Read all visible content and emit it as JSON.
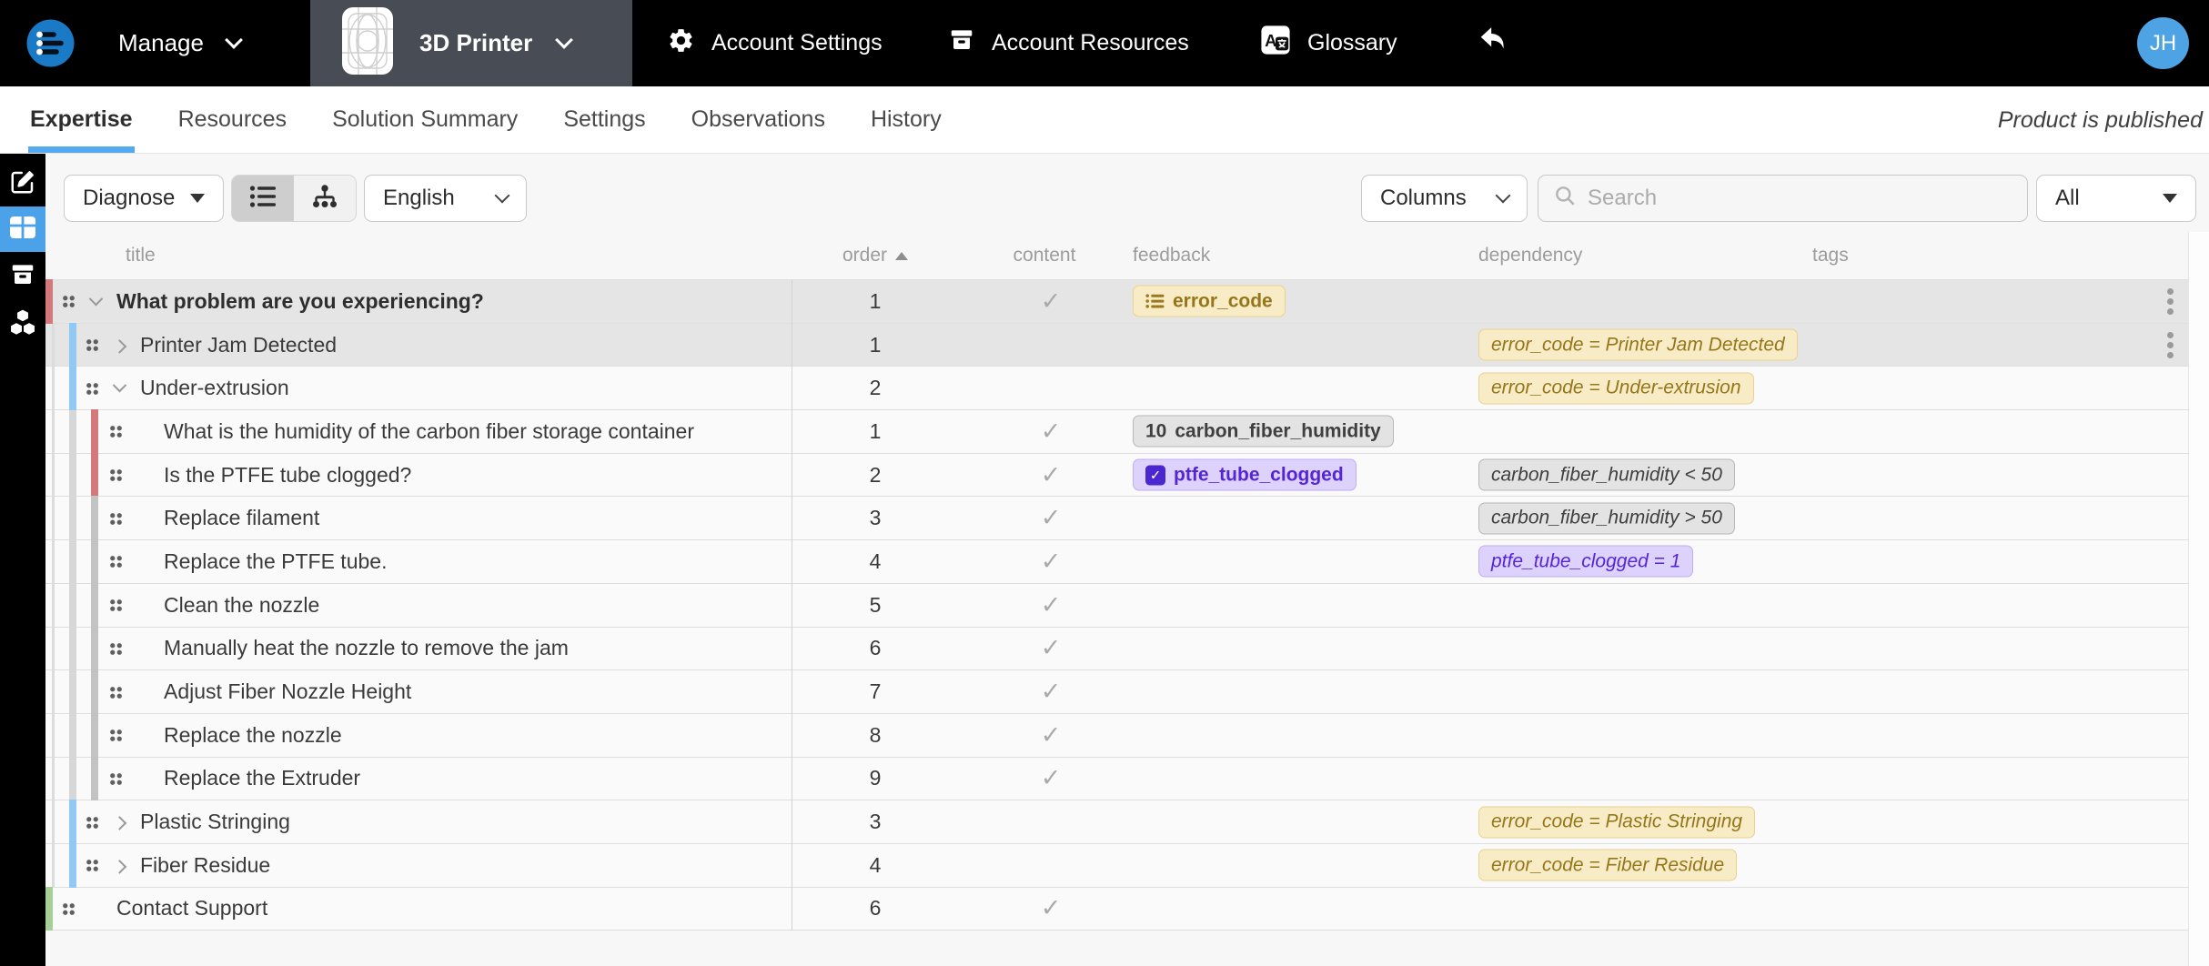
{
  "topbar": {
    "manage_label": "Manage",
    "product_name": "3D Printer",
    "nav_items": [
      {
        "label": "Account Settings",
        "icon": "gear-icon"
      },
      {
        "label": "Account Resources",
        "icon": "archive-icon"
      },
      {
        "label": "Glossary",
        "icon": "translate-icon"
      }
    ],
    "avatar_initials": "JH"
  },
  "tabs": {
    "items": [
      {
        "label": "Expertise",
        "active": true
      },
      {
        "label": "Resources",
        "active": false
      },
      {
        "label": "Solution Summary",
        "active": false
      },
      {
        "label": "Settings",
        "active": false
      },
      {
        "label": "Observations",
        "active": false
      },
      {
        "label": "History",
        "active": false
      }
    ],
    "status_note": "Product is published"
  },
  "toolbar": {
    "mode_select_value": "Diagnose",
    "active_view": "list",
    "language_select_value": "English",
    "columns_button_label": "Columns",
    "search_placeholder": "Search",
    "filter_select_value": "All"
  },
  "table": {
    "headers": {
      "title": "title",
      "order": "order",
      "content": "content",
      "feedback": "feedback",
      "dependency": "dependency",
      "tags": "tags"
    },
    "sort": {
      "column": "order",
      "direction": "asc"
    },
    "rows": [
      {
        "title": "What problem are you experiencing?",
        "bold": true,
        "level": 0,
        "indicator": "red",
        "chevron": "down",
        "order": "1",
        "check": true,
        "guides": [],
        "feedback": {
          "style": "tan",
          "icon": "list-icon",
          "label": "error_code"
        },
        "dependency": null,
        "kebab": true,
        "selected": true
      },
      {
        "title": "Printer Jam Detected",
        "bold": false,
        "level": 1,
        "indicator": "blue",
        "chevron": "right",
        "order": "1",
        "check": false,
        "guides": [
          "outer"
        ],
        "feedback": null,
        "dependency": {
          "style": "tan",
          "text": "error_code = Printer Jam Detected"
        },
        "kebab": true,
        "selected": true
      },
      {
        "title": "Under-extrusion",
        "bold": false,
        "level": 1,
        "indicator": "blue",
        "chevron": "down",
        "order": "2",
        "check": false,
        "guides": [
          "outer"
        ],
        "feedback": null,
        "dependency": {
          "style": "tan",
          "text": "error_code = Under-extrusion"
        },
        "kebab": false,
        "selected": false
      },
      {
        "title": "What is the humidity of the carbon fiber storage container",
        "bold": false,
        "level": 2,
        "indicator": "red",
        "chevron": null,
        "order": "1",
        "check": true,
        "guides": [
          "outer",
          "inner"
        ],
        "feedback": {
          "style": "gray",
          "prefix": "10",
          "label": "carbon_fiber_humidity"
        },
        "dependency": null,
        "kebab": false,
        "selected": false
      },
      {
        "title": "Is the PTFE tube clogged?",
        "bold": false,
        "level": 2,
        "indicator": "red",
        "chevron": null,
        "order": "2",
        "check": true,
        "guides": [
          "outer",
          "inner"
        ],
        "feedback": {
          "style": "purple",
          "icon": "checkbox-icon",
          "label": "ptfe_tube_clogged"
        },
        "dependency": {
          "style": "gray",
          "text": "carbon_fiber_humidity < 50"
        },
        "kebab": false,
        "selected": false
      },
      {
        "title": "Replace filament",
        "bold": false,
        "level": 2,
        "indicator": "gray",
        "chevron": null,
        "order": "3",
        "check": true,
        "guides": [
          "outer",
          "inner"
        ],
        "feedback": null,
        "dependency": {
          "style": "gray",
          "text": "carbon_fiber_humidity > 50"
        },
        "kebab": false,
        "selected": false
      },
      {
        "title": "Replace the PTFE tube.",
        "bold": false,
        "level": 2,
        "indicator": "gray",
        "chevron": null,
        "order": "4",
        "check": true,
        "guides": [
          "outer",
          "inner"
        ],
        "feedback": null,
        "dependency": {
          "style": "purple",
          "text": "ptfe_tube_clogged = 1"
        },
        "kebab": false,
        "selected": false
      },
      {
        "title": "Clean the nozzle",
        "bold": false,
        "level": 2,
        "indicator": "gray",
        "chevron": null,
        "order": "5",
        "check": true,
        "guides": [
          "outer",
          "inner"
        ],
        "feedback": null,
        "dependency": null,
        "kebab": false,
        "selected": false
      },
      {
        "title": "Manually heat the nozzle to remove the jam",
        "bold": false,
        "level": 2,
        "indicator": "gray",
        "chevron": null,
        "order": "6",
        "check": true,
        "guides": [
          "outer",
          "inner"
        ],
        "feedback": null,
        "dependency": null,
        "kebab": false,
        "selected": false
      },
      {
        "title": "Adjust Fiber Nozzle Height",
        "bold": false,
        "level": 2,
        "indicator": "gray",
        "chevron": null,
        "order": "7",
        "check": true,
        "guides": [
          "outer",
          "inner"
        ],
        "feedback": null,
        "dependency": null,
        "kebab": false,
        "selected": false
      },
      {
        "title": "Replace the nozzle",
        "bold": false,
        "level": 2,
        "indicator": "gray",
        "chevron": null,
        "order": "8",
        "check": true,
        "guides": [
          "outer",
          "inner"
        ],
        "feedback": null,
        "dependency": null,
        "kebab": false,
        "selected": false
      },
      {
        "title": "Replace the Extruder",
        "bold": false,
        "level": 2,
        "indicator": "gray",
        "chevron": null,
        "order": "9",
        "check": true,
        "guides": [
          "outer",
          "inner"
        ],
        "feedback": null,
        "dependency": null,
        "kebab": false,
        "selected": false
      },
      {
        "title": "Plastic Stringing",
        "bold": false,
        "level": 1,
        "indicator": "blue",
        "chevron": "right",
        "order": "3",
        "check": false,
        "guides": [
          "outer"
        ],
        "feedback": null,
        "dependency": {
          "style": "tan",
          "text": "error_code = Plastic Stringing"
        },
        "kebab": false,
        "selected": false
      },
      {
        "title": "Fiber Residue",
        "bold": false,
        "level": 1,
        "indicator": "blue",
        "chevron": "right",
        "order": "4",
        "check": false,
        "guides": [
          "outer"
        ],
        "feedback": null,
        "dependency": {
          "style": "tan",
          "text": "error_code = Fiber Residue"
        },
        "kebab": false,
        "selected": false
      },
      {
        "title": "Contact Support",
        "bold": false,
        "level": 0,
        "indicator": "green",
        "chevron": null,
        "order": "6",
        "check": true,
        "guides": [],
        "feedback": null,
        "dependency": null,
        "kebab": false,
        "selected": false
      }
    ]
  },
  "colors": {
    "accent_blue": "#55a9ee",
    "indicator_red": "#d3797c",
    "indicator_blue": "#92c9f4",
    "indicator_gray": "#c3c3c3",
    "indicator_green": "#a6cf98",
    "badge_tan_bg": "#f8ecc6",
    "badge_tan_text": "#95761b",
    "badge_gray_bg": "#e3e3e3",
    "badge_purple_bg": "#ddd2fb",
    "badge_purple_text": "#5526d6"
  }
}
